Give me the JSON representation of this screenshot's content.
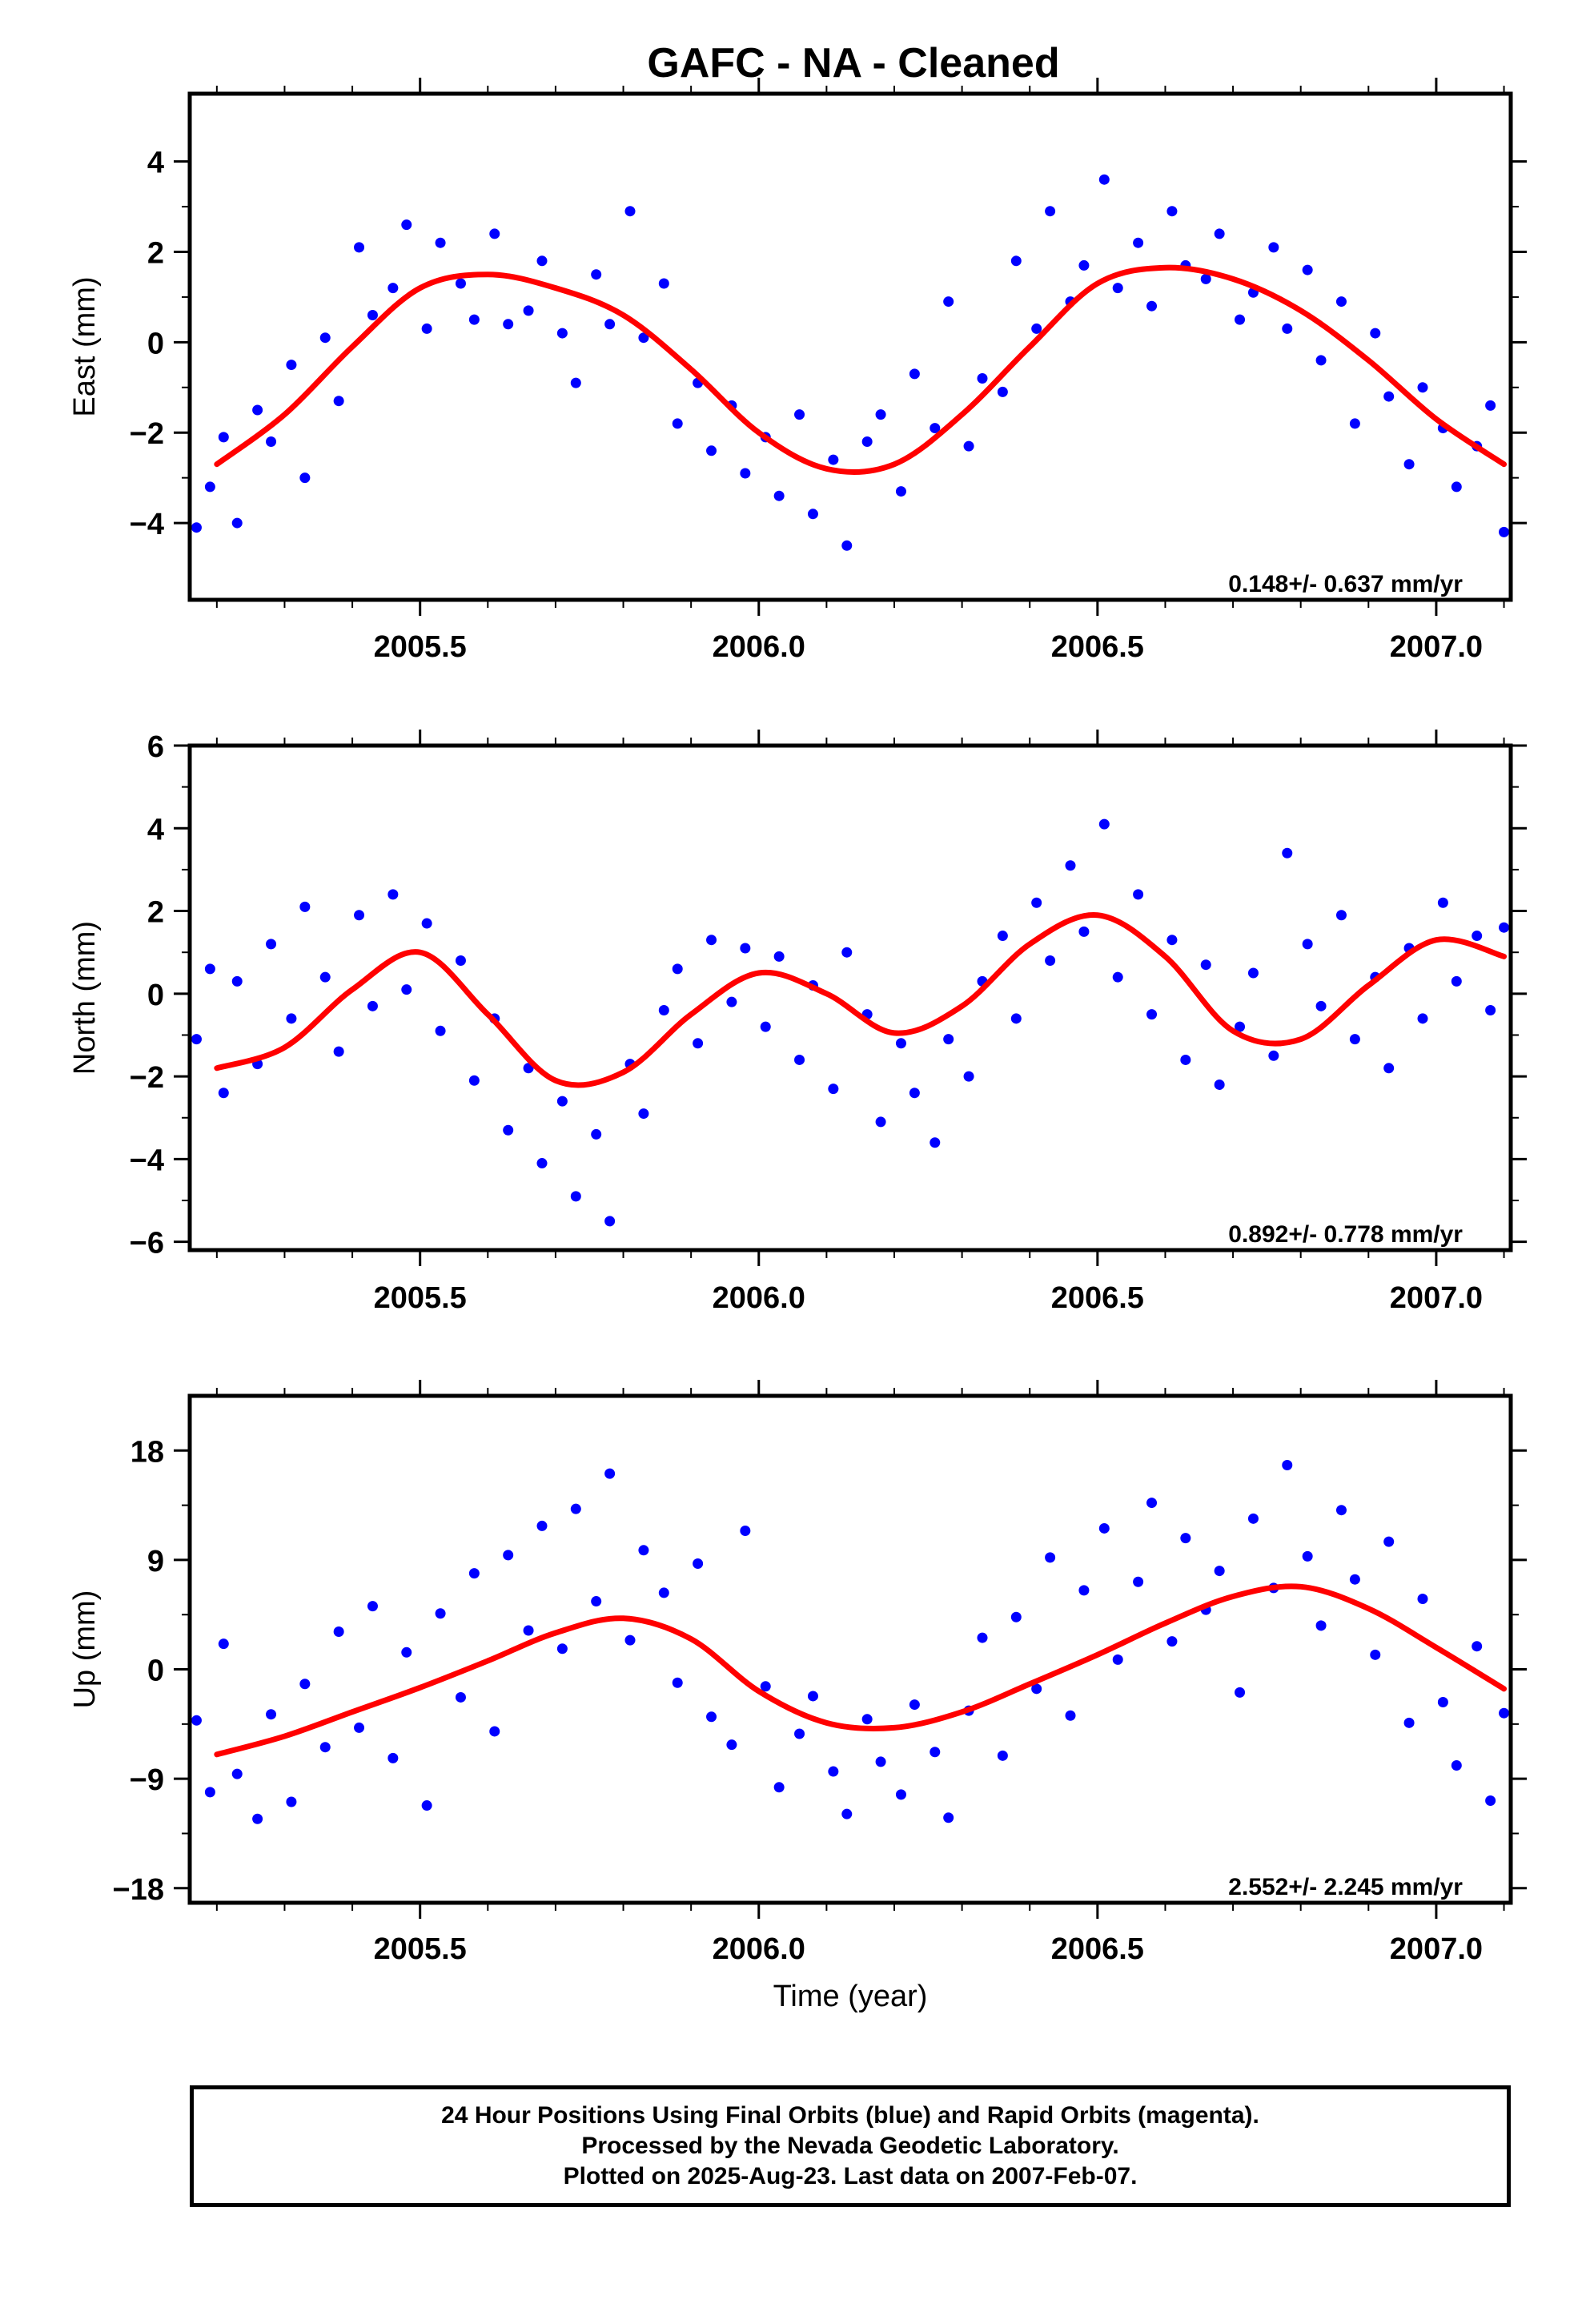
{
  "title": "GAFC  - NA - Cleaned",
  "footer": {
    "lines": [
      "24 Hour Positions Using Final Orbits (blue) and Rapid Orbits (magenta).",
      "Processed by the Nevada Geodetic Laboratory.",
      "Plotted on 2025-Aug-23. Last data on 2007-Feb-07."
    ]
  },
  "colors": {
    "points": "#0000ff",
    "fit": "#ff0000",
    "frame": "#000000"
  },
  "chart_data": [
    {
      "type": "scatter",
      "component": "east",
      "ylabel": "East (mm)",
      "xlabel": "",
      "xlim": [
        2005.16,
        2007.11
      ],
      "ylim": [
        -5.7,
        5.5
      ],
      "xticks": [
        2005.5,
        2006.0,
        2006.5,
        2007.0
      ],
      "xtick_labels": [
        "2005.5",
        "2006.0",
        "2006.5",
        "2007.0"
      ],
      "yticks": [
        -4,
        -2,
        0,
        2,
        4
      ],
      "ytick_labels": [
        "−4",
        "−2",
        "0",
        "2",
        "4"
      ],
      "rate_label": "0.148+/- 0.637 mm/yr",
      "fit": {
        "x": [
          2005.2,
          2005.3,
          2005.4,
          2005.5,
          2005.6,
          2005.7,
          2005.8,
          2005.9,
          2006.0,
          2006.1,
          2006.2,
          2006.3,
          2006.4,
          2006.5,
          2006.6,
          2006.7,
          2006.8,
          2006.9,
          2007.0,
          2007.1
        ],
        "y": [
          -2.7,
          -1.6,
          -0.1,
          1.2,
          1.5,
          1.2,
          0.6,
          -0.6,
          -2.0,
          -2.8,
          -2.7,
          -1.6,
          -0.1,
          1.3,
          1.65,
          1.4,
          0.7,
          -0.4,
          -1.7,
          -2.7
        ]
      },
      "points": {
        "x": [
          2005.17,
          2005.19,
          2005.21,
          2005.23,
          2005.26,
          2005.28,
          2005.31,
          2005.33,
          2005.36,
          2005.38,
          2005.41,
          2005.43,
          2005.46,
          2005.48,
          2005.51,
          2005.53,
          2005.56,
          2005.58,
          2005.61,
          2005.63,
          2005.66,
          2005.68,
          2005.71,
          2005.73,
          2005.76,
          2005.78,
          2005.81,
          2005.83,
          2005.86,
          2005.88,
          2005.91,
          2005.93,
          2005.96,
          2005.98,
          2006.01,
          2006.03,
          2006.06,
          2006.08,
          2006.11,
          2006.13,
          2006.16,
          2006.18,
          2006.21,
          2006.23,
          2006.26,
          2006.28,
          2006.31,
          2006.33,
          2006.36,
          2006.38,
          2006.41,
          2006.43,
          2006.46,
          2006.48,
          2006.51,
          2006.53,
          2006.56,
          2006.58,
          2006.61,
          2006.63,
          2006.66,
          2006.68,
          2006.71,
          2006.73,
          2006.76,
          2006.78,
          2006.81,
          2006.83,
          2006.86,
          2006.88,
          2006.91,
          2006.93,
          2006.96,
          2006.98,
          2007.01,
          2007.03,
          2007.06,
          2007.08,
          2007.1
        ],
        "y": [
          -4.1,
          -3.2,
          -2.1,
          -4.0,
          -1.5,
          -2.2,
          -0.5,
          -3.0,
          0.1,
          -1.3,
          2.1,
          0.6,
          1.2,
          2.6,
          0.3,
          2.2,
          1.3,
          0.5,
          2.4,
          0.4,
          0.7,
          1.8,
          0.2,
          -0.9,
          1.5,
          0.4,
          2.9,
          0.1,
          1.3,
          -1.8,
          -0.9,
          -2.4,
          -1.4,
          -2.9,
          -2.1,
          -3.4,
          -1.6,
          -3.8,
          -2.6,
          -4.5,
          -2.2,
          -1.6,
          -3.3,
          -0.7,
          -1.9,
          0.9,
          -2.3,
          -0.8,
          -1.1,
          1.8,
          0.3,
          2.9,
          0.9,
          1.7,
          3.6,
          1.2,
          2.2,
          0.8,
          2.9,
          1.7,
          1.4,
          2.4,
          0.5,
          1.1,
          2.1,
          0.3,
          1.6,
          -0.4,
          0.9,
          -1.8,
          0.2,
          -1.2,
          -2.7,
          -1.0,
          -1.9,
          -3.2,
          -2.3,
          -1.4,
          -4.2
        ]
      }
    },
    {
      "type": "scatter",
      "component": "north",
      "ylabel": "North (mm)",
      "xlabel": "",
      "xlim": [
        2005.16,
        2007.11
      ],
      "ylim": [
        -6.2,
        6.0
      ],
      "xticks": [
        2005.5,
        2006.0,
        2006.5,
        2007.0
      ],
      "xtick_labels": [
        "2005.5",
        "2006.0",
        "2006.5",
        "2007.0"
      ],
      "yticks": [
        -6,
        -4,
        -2,
        0,
        2,
        4,
        6
      ],
      "ytick_labels": [
        "−6",
        "−4",
        "−2",
        "0",
        "2",
        "4",
        "6"
      ],
      "rate_label": "0.892+/- 0.778 mm/yr",
      "fit": {
        "x": [
          2005.2,
          2005.3,
          2005.4,
          2005.5,
          2005.6,
          2005.7,
          2005.8,
          2005.9,
          2006.0,
          2006.1,
          2006.2,
          2006.3,
          2006.4,
          2006.5,
          2006.6,
          2006.7,
          2006.8,
          2006.9,
          2007.0,
          2007.1
        ],
        "y": [
          -1.8,
          -1.3,
          0.1,
          1.0,
          -0.5,
          -2.1,
          -1.9,
          -0.5,
          0.5,
          0.0,
          -0.95,
          -0.3,
          1.2,
          1.9,
          0.9,
          -0.9,
          -1.1,
          0.2,
          1.3,
          0.9
        ]
      },
      "points": {
        "x": [
          2005.17,
          2005.19,
          2005.21,
          2005.23,
          2005.26,
          2005.28,
          2005.31,
          2005.33,
          2005.36,
          2005.38,
          2005.41,
          2005.43,
          2005.46,
          2005.48,
          2005.51,
          2005.53,
          2005.56,
          2005.58,
          2005.61,
          2005.63,
          2005.66,
          2005.68,
          2005.71,
          2005.73,
          2005.76,
          2005.78,
          2005.81,
          2005.83,
          2005.86,
          2005.88,
          2005.91,
          2005.93,
          2005.96,
          2005.98,
          2006.01,
          2006.03,
          2006.06,
          2006.08,
          2006.11,
          2006.13,
          2006.16,
          2006.18,
          2006.21,
          2006.23,
          2006.26,
          2006.28,
          2006.31,
          2006.33,
          2006.36,
          2006.38,
          2006.41,
          2006.43,
          2006.46,
          2006.48,
          2006.51,
          2006.53,
          2006.56,
          2006.58,
          2006.61,
          2006.63,
          2006.66,
          2006.68,
          2006.71,
          2006.73,
          2006.76,
          2006.78,
          2006.81,
          2006.83,
          2006.86,
          2006.88,
          2006.91,
          2006.93,
          2006.96,
          2006.98,
          2007.01,
          2007.03,
          2007.06,
          2007.08,
          2007.1
        ],
        "y": [
          -1.1,
          0.6,
          -2.4,
          0.3,
          -1.7,
          1.2,
          -0.6,
          2.1,
          0.4,
          -1.4,
          1.9,
          -0.3,
          2.4,
          0.1,
          1.7,
          -0.9,
          0.8,
          -2.1,
          -0.6,
          -3.3,
          -1.8,
          -4.1,
          -2.6,
          -4.9,
          -3.4,
          -5.5,
          -1.7,
          -2.9,
          -0.4,
          0.6,
          -1.2,
          1.3,
          -0.2,
          1.1,
          -0.8,
          0.9,
          -1.6,
          0.2,
          -2.3,
          1.0,
          -0.5,
          -3.1,
          -1.2,
          -2.4,
          -3.6,
          -1.1,
          -2.0,
          0.3,
          1.4,
          -0.6,
          2.2,
          0.8,
          3.1,
          1.5,
          4.1,
          0.4,
          2.4,
          -0.5,
          1.3,
          -1.6,
          0.7,
          -2.2,
          -0.8,
          0.5,
          -1.5,
          3.4,
          1.2,
          -0.3,
          1.9,
          -1.1,
          0.4,
          -1.8,
          1.1,
          -0.6,
          2.2,
          0.3,
          1.4,
          -0.4,
          1.6
        ]
      }
    },
    {
      "type": "scatter",
      "component": "up",
      "ylabel": "Up (mm)",
      "xlabel": "Time (year)",
      "xlim": [
        2005.16,
        2007.11
      ],
      "ylim": [
        -19.2,
        22.5
      ],
      "xticks": [
        2005.5,
        2006.0,
        2006.5,
        2007.0
      ],
      "xtick_labels": [
        "2005.5",
        "2006.0",
        "2006.5",
        "2007.0"
      ],
      "yticks": [
        -18,
        -9,
        0,
        9,
        18
      ],
      "ytick_labels": [
        "−18",
        "−9",
        "0",
        "9",
        "18"
      ],
      "rate_label": "2.552+/- 2.245 mm/yr",
      "fit": {
        "x": [
          2005.2,
          2005.3,
          2005.4,
          2005.5,
          2005.6,
          2005.7,
          2005.8,
          2005.9,
          2006.0,
          2006.1,
          2006.2,
          2006.3,
          2006.4,
          2006.5,
          2006.6,
          2006.7,
          2006.8,
          2006.9,
          2007.0,
          2007.1
        ],
        "y": [
          -7.0,
          -5.5,
          -3.5,
          -1.5,
          0.7,
          3.0,
          4.2,
          2.5,
          -1.8,
          -4.4,
          -4.8,
          -3.5,
          -1.2,
          1.2,
          3.8,
          6.0,
          6.8,
          5.0,
          1.8,
          -1.6
        ]
      },
      "points": {
        "x": [
          2005.17,
          2005.19,
          2005.21,
          2005.23,
          2005.26,
          2005.28,
          2005.31,
          2005.33,
          2005.36,
          2005.38,
          2005.41,
          2005.43,
          2005.46,
          2005.48,
          2005.51,
          2005.53,
          2005.56,
          2005.58,
          2005.61,
          2005.63,
          2005.66,
          2005.68,
          2005.71,
          2005.73,
          2005.76,
          2005.78,
          2005.81,
          2005.83,
          2005.86,
          2005.88,
          2005.91,
          2005.93,
          2005.96,
          2005.98,
          2006.01,
          2006.03,
          2006.06,
          2006.08,
          2006.11,
          2006.13,
          2006.16,
          2006.18,
          2006.21,
          2006.23,
          2006.26,
          2006.28,
          2006.31,
          2006.33,
          2006.36,
          2006.38,
          2006.41,
          2006.43,
          2006.46,
          2006.48,
          2006.51,
          2006.53,
          2006.56,
          2006.58,
          2006.61,
          2006.63,
          2006.66,
          2006.68,
          2006.71,
          2006.73,
          2006.76,
          2006.78,
          2006.81,
          2006.83,
          2006.86,
          2006.88,
          2006.91,
          2006.93,
          2006.96,
          2006.98,
          2007.01,
          2007.03,
          2007.06,
          2007.08,
          2007.1
        ],
        "y": [
          -4.2,
          -10.1,
          2.1,
          -8.6,
          -12.3,
          -3.7,
          -10.9,
          -1.2,
          -6.4,
          3.1,
          -4.8,
          5.2,
          -7.3,
          1.4,
          -11.2,
          4.6,
          -2.3,
          7.9,
          -5.1,
          9.4,
          3.2,
          11.8,
          1.7,
          13.2,
          5.6,
          16.1,
          2.4,
          9.8,
          6.3,
          -1.1,
          8.7,
          -3.9,
          -6.2,
          11.4,
          -1.4,
          -9.7,
          -5.3,
          -2.2,
          -8.4,
          -11.9,
          -4.1,
          -7.6,
          -10.3,
          -2.9,
          -6.8,
          -12.2,
          -3.4,
          2.6,
          -7.1,
          4.3,
          -1.6,
          9.2,
          -3.8,
          6.5,
          11.6,
          0.8,
          7.2,
          13.7,
          2.3,
          10.8,
          4.9,
          8.1,
          -1.9,
          12.4,
          6.7,
          16.8,
          9.3,
          3.6,
          13.1,
          7.4,
          1.2,
          10.5,
          -4.4,
          5.8,
          -2.7,
          -7.9,
          1.9,
          -10.8,
          -3.6
        ]
      }
    }
  ]
}
